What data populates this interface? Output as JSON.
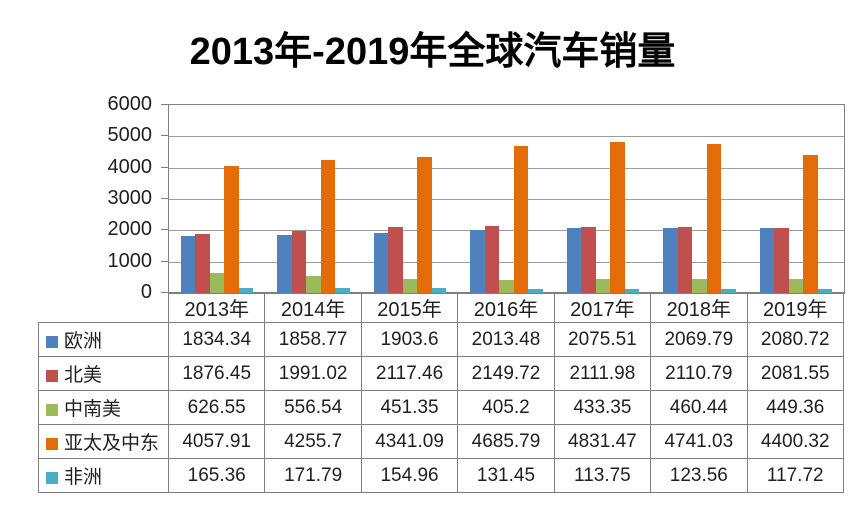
{
  "title": "2013年-2019年全球汽车销量",
  "chart_data": {
    "type": "bar",
    "title": "2013年-2019年全球汽车销量",
    "categories": [
      "2013年",
      "2014年",
      "2015年",
      "2016年",
      "2017年",
      "2018年",
      "2019年"
    ],
    "series": [
      {
        "name": "欧洲",
        "color": "#4F81BD",
        "values": [
          1834.34,
          1858.77,
          1903.6,
          2013.48,
          2075.51,
          2069.79,
          2080.72
        ]
      },
      {
        "name": "北美",
        "color": "#C0504D",
        "values": [
          1876.45,
          1991.02,
          2117.46,
          2149.72,
          2111.98,
          2110.79,
          2081.55
        ]
      },
      {
        "name": "中南美",
        "color": "#9BBB59",
        "values": [
          626.55,
          556.54,
          451.35,
          405.2,
          433.35,
          460.44,
          449.36
        ]
      },
      {
        "name": "亚太及中东",
        "color": "#E36C09",
        "values": [
          4057.91,
          4255.7,
          4341.09,
          4685.79,
          4831.47,
          4741.03,
          4400.32
        ]
      },
      {
        "name": "非洲",
        "color": "#4BACC6",
        "values": [
          165.36,
          171.79,
          154.96,
          131.45,
          113.75,
          123.56,
          117.72
        ]
      }
    ],
    "ylim": [
      0,
      6000
    ],
    "yticks": [
      0,
      1000,
      2000,
      3000,
      4000,
      5000,
      6000
    ],
    "grid": true,
    "legend_position": "data-table-row-headers",
    "data_table_shown": true
  },
  "style": {
    "grid_color": "#9c9c9c",
    "axis_border_color": "#808080",
    "table_border_color": "#7f7f7f",
    "text_color": "#1f1f1f",
    "title_color": "#000000",
    "background": "#ffffff"
  }
}
